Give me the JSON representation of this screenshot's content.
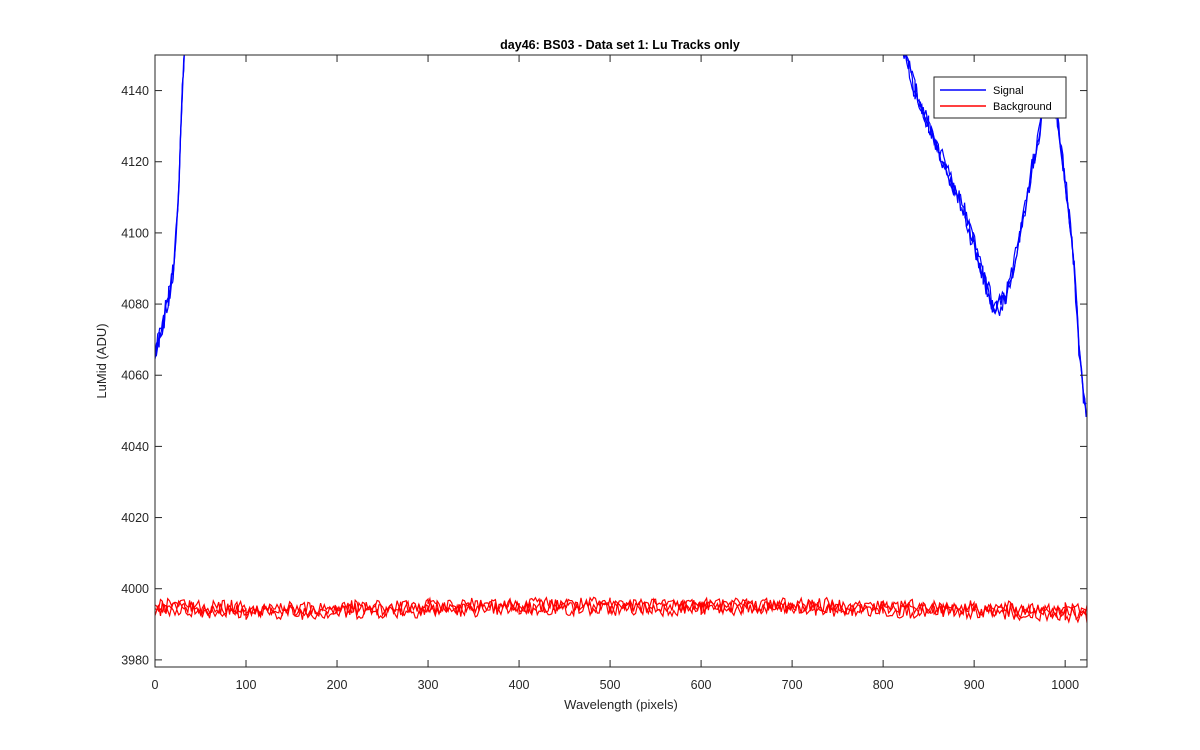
{
  "chart_data": {
    "type": "line",
    "title": "day46: BS03 - Data set 1: Lu Tracks only",
    "xlabel": "Wavelength (pixels)",
    "ylabel": "LuMid (ADU)",
    "xlim": [
      0,
      1024
    ],
    "ylim": [
      3978,
      4150
    ],
    "xticks": [
      0,
      100,
      200,
      300,
      400,
      500,
      600,
      700,
      800,
      900,
      1000
    ],
    "yticks": [
      3980,
      4000,
      4020,
      4040,
      4060,
      4080,
      4100,
      4120,
      4140
    ],
    "grid": false,
    "legend_position": "top-right",
    "series": [
      {
        "name": "Signal",
        "color": "#0000ff",
        "x": [
          0,
          5,
          10,
          15,
          20,
          25,
          30,
          33,
          820,
          835,
          850,
          870,
          890,
          910,
          920,
          925,
          935,
          950,
          965,
          980,
          990,
          1000,
          1010,
          1015,
          1020,
          1024
        ],
        "y": [
          4066,
          4070,
          4076,
          4082,
          4090,
          4106,
          4140,
          4155,
          4155,
          4140,
          4130,
          4118,
          4105,
          4088,
          4080,
          4079,
          4082,
          4098,
          4120,
          4140,
          4135,
          4115,
          4090,
          4068,
          4055,
          4047
        ]
      },
      {
        "name": "Background",
        "color": "#ff0000",
        "x": [
          0,
          100,
          200,
          300,
          400,
          500,
          600,
          700,
          800,
          900,
          1000,
          1024
        ],
        "y": [
          3995,
          3994,
          3994,
          3994.5,
          3995,
          3995,
          3995,
          3995,
          3994.5,
          3994,
          3993.5,
          3993
        ]
      }
    ]
  }
}
